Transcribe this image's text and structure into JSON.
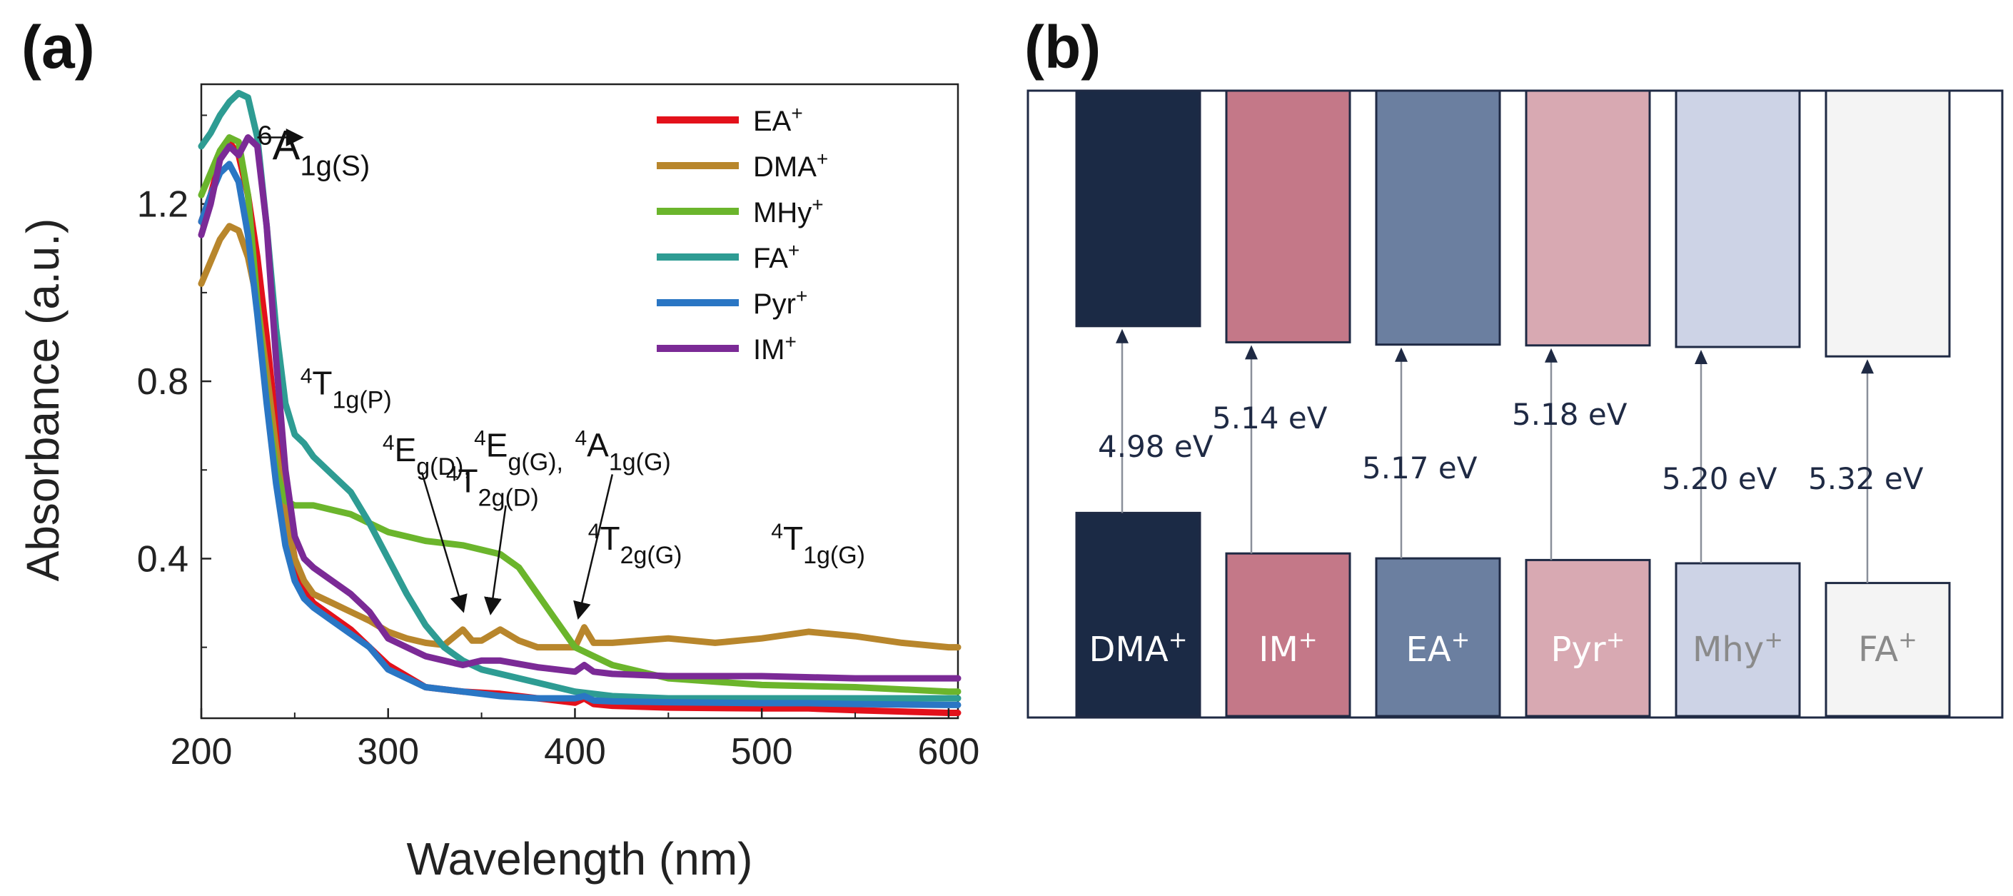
{
  "panel_a_label": "(a)",
  "panel_b_label": "(b)",
  "chart_data": [
    {
      "type": "line",
      "title": "",
      "xlabel": "Wavelength (nm)",
      "ylabel": "Absorbance (a.u.)",
      "xlim": [
        200,
        605
      ],
      "ylim": [
        0.04,
        1.47
      ],
      "xticks": [
        200,
        300,
        400,
        500,
        600
      ],
      "yticks": [
        0.4,
        0.8,
        1.2
      ],
      "xtick_labels": [
        "200",
        "300",
        "400",
        "500",
        "600"
      ],
      "ytick_labels": [
        "0.4",
        "0.8",
        "1.2"
      ],
      "legend_position": "top-right",
      "series": [
        {
          "name": "EA",
          "sup": "+",
          "color": "#e3111b",
          "x": [
            200,
            205,
            210,
            215,
            220,
            225,
            230,
            235,
            240,
            245,
            250,
            255,
            260,
            270,
            280,
            290,
            300,
            320,
            340,
            360,
            380,
            400,
            405,
            410,
            420,
            450,
            500,
            525,
            550,
            600,
            605
          ],
          "y": [
            1.16,
            1.22,
            1.3,
            1.34,
            1.31,
            1.22,
            1.08,
            0.9,
            0.7,
            0.52,
            0.4,
            0.33,
            0.3,
            0.27,
            0.24,
            0.2,
            0.16,
            0.11,
            0.1,
            0.095,
            0.085,
            0.075,
            0.085,
            0.072,
            0.068,
            0.064,
            0.062,
            0.062,
            0.058,
            0.052,
            0.052
          ]
        },
        {
          "name": "DMA",
          "sup": "+",
          "color": "#b8862c",
          "x": [
            200,
            205,
            210,
            215,
            220,
            225,
            230,
            235,
            240,
            245,
            250,
            255,
            260,
            270,
            280,
            290,
            300,
            310,
            320,
            330,
            340,
            345,
            350,
            360,
            370,
            380,
            390,
            400,
            405,
            410,
            420,
            450,
            475,
            500,
            525,
            550,
            575,
            600,
            605
          ],
          "y": [
            1.02,
            1.07,
            1.12,
            1.15,
            1.14,
            1.08,
            0.98,
            0.82,
            0.65,
            0.5,
            0.4,
            0.35,
            0.32,
            0.3,
            0.28,
            0.26,
            0.235,
            0.22,
            0.21,
            0.205,
            0.24,
            0.215,
            0.215,
            0.24,
            0.215,
            0.2,
            0.2,
            0.2,
            0.245,
            0.21,
            0.21,
            0.22,
            0.21,
            0.22,
            0.235,
            0.225,
            0.21,
            0.2,
            0.2
          ]
        },
        {
          "name": "MHy",
          "sup": "+",
          "color": "#6bb52c",
          "x": [
            200,
            205,
            210,
            215,
            220,
            225,
            230,
            235,
            240,
            245,
            250,
            255,
            260,
            270,
            280,
            290,
            300,
            310,
            320,
            340,
            350,
            360,
            370,
            380,
            390,
            400,
            410,
            420,
            450,
            500,
            550,
            600,
            605
          ],
          "y": [
            1.22,
            1.27,
            1.32,
            1.35,
            1.34,
            1.22,
            0.98,
            0.76,
            0.6,
            0.53,
            0.52,
            0.52,
            0.52,
            0.51,
            0.5,
            0.48,
            0.46,
            0.45,
            0.44,
            0.43,
            0.42,
            0.41,
            0.38,
            0.32,
            0.26,
            0.2,
            0.18,
            0.16,
            0.13,
            0.115,
            0.11,
            0.1,
            0.1
          ]
        },
        {
          "name": "FA",
          "sup": "+",
          "color": "#2e9c93",
          "x": [
            200,
            205,
            210,
            215,
            220,
            225,
            230,
            235,
            240,
            245,
            250,
            255,
            260,
            270,
            280,
            290,
            300,
            310,
            320,
            330,
            340,
            350,
            360,
            380,
            400,
            420,
            450,
            500,
            550,
            600,
            605
          ],
          "y": [
            1.33,
            1.36,
            1.4,
            1.43,
            1.45,
            1.44,
            1.35,
            1.15,
            0.92,
            0.75,
            0.68,
            0.66,
            0.63,
            0.59,
            0.55,
            0.48,
            0.4,
            0.32,
            0.25,
            0.2,
            0.17,
            0.15,
            0.14,
            0.12,
            0.1,
            0.09,
            0.085,
            0.085,
            0.085,
            0.085,
            0.085
          ]
        },
        {
          "name": "Pyr",
          "sup": "+",
          "color": "#2a76c4",
          "x": [
            200,
            205,
            210,
            215,
            220,
            225,
            230,
            235,
            240,
            245,
            250,
            255,
            260,
            270,
            280,
            290,
            300,
            320,
            340,
            360,
            380,
            400,
            405,
            410,
            420,
            450,
            500,
            525,
            550,
            600,
            605
          ],
          "y": [
            1.16,
            1.22,
            1.27,
            1.29,
            1.25,
            1.13,
            0.95,
            0.75,
            0.57,
            0.43,
            0.35,
            0.31,
            0.29,
            0.26,
            0.23,
            0.2,
            0.15,
            0.11,
            0.1,
            0.09,
            0.085,
            0.085,
            0.09,
            0.08,
            0.078,
            0.076,
            0.074,
            0.074,
            0.072,
            0.07,
            0.07
          ]
        },
        {
          "name": "IM",
          "sup": "+",
          "color": "#7b2a96",
          "x": [
            200,
            205,
            210,
            215,
            220,
            225,
            230,
            235,
            240,
            245,
            250,
            255,
            260,
            270,
            280,
            290,
            300,
            320,
            340,
            350,
            360,
            380,
            400,
            405,
            410,
            420,
            450,
            500,
            550,
            600,
            605
          ],
          "y": [
            1.13,
            1.2,
            1.3,
            1.33,
            1.31,
            1.35,
            1.33,
            1.15,
            0.85,
            0.6,
            0.45,
            0.4,
            0.38,
            0.35,
            0.32,
            0.28,
            0.22,
            0.18,
            0.16,
            0.17,
            0.17,
            0.155,
            0.145,
            0.16,
            0.145,
            0.14,
            0.135,
            0.135,
            0.13,
            0.13,
            0.13
          ]
        }
      ],
      "annotations": [
        {
          "main": "6",
          "label": "A",
          "sub": "1g(S)",
          "x": 230,
          "y": 1.3
        },
        {
          "main": "4",
          "label": "T",
          "sub": "1g(P)",
          "x": 253,
          "y": 0.77
        },
        {
          "main": "4",
          "label": "E",
          "sub": "g(D),",
          "x": 297,
          "y": 0.62
        },
        {
          "main": "4",
          "label": "T",
          "sub": "2g(D)",
          "x": 331,
          "y": 0.55
        },
        {
          "main": "4",
          "label": "E",
          "sub": "g(G),",
          "x": 346,
          "y": 0.63
        },
        {
          "main": "4",
          "label": "A",
          "sub": "1g(G)",
          "x": 400,
          "y": 0.63
        },
        {
          "main": "4",
          "label": "T",
          "sub": "2g(G)",
          "x": 407,
          "y": 0.42
        },
        {
          "main": "4",
          "label": "T",
          "sub": "1g(G)",
          "x": 505,
          "y": 0.42
        }
      ]
    },
    {
      "type": "energy_level_diagram",
      "unit": "eV",
      "cations": [
        {
          "name": "DMA",
          "sup": "+",
          "gap": 4.98,
          "gap_label": "4.98 eV",
          "color": "#1b2a45",
          "text_color": "#ffffff"
        },
        {
          "name": "IM",
          "sup": "+",
          "gap": 5.14,
          "gap_label": "5.14 eV",
          "color": "#c47888",
          "text_color": "#ffffff"
        },
        {
          "name": "EA",
          "sup": "+",
          "gap": 5.17,
          "gap_label": "5.17 eV",
          "color": "#6b7fa0",
          "text_color": "#ffffff"
        },
        {
          "name": "Pyr",
          "sup": "+",
          "gap": 5.18,
          "gap_label": "5.18 eV",
          "color": "#d8a9b2",
          "text_color": "#ffffff"
        },
        {
          "name": "Mhy",
          "sup": "+",
          "gap": 5.2,
          "gap_label": "5.20 eV",
          "color": "#cdd3e6",
          "text_color": "#8a8a8a"
        },
        {
          "name": "FA",
          "sup": "+",
          "gap": 5.32,
          "gap_label": "5.32 eV",
          "color": "#f4f4f4",
          "text_color": "#8a8a8a"
        }
      ]
    }
  ]
}
